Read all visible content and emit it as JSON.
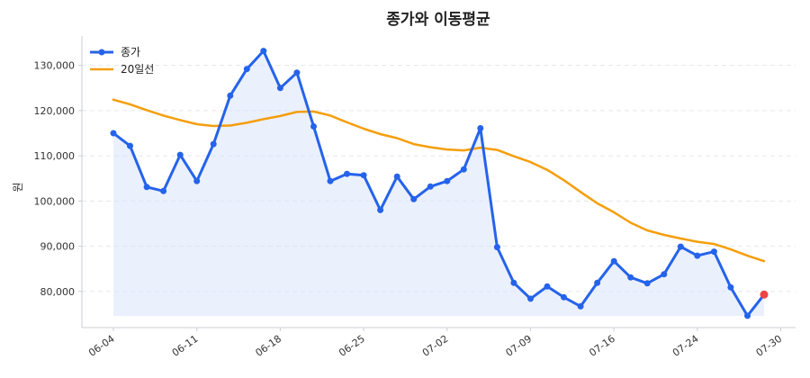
{
  "chart_data": {
    "type": "line",
    "title": "종가와 이동평균",
    "ylabel": "원",
    "xlabel": "",
    "ylim": [
      72000,
      136500
    ],
    "y_ticks": [
      80000,
      90000,
      100000,
      110000,
      120000,
      130000
    ],
    "y_tick_labels": [
      "80,000",
      "90,000",
      "100,000",
      "110,000",
      "120,000",
      "130,000"
    ],
    "x_ticks": [
      0,
      5,
      10,
      15,
      20,
      25,
      30,
      35,
      40
    ],
    "x_tick_labels": [
      "06-04",
      "06-11",
      "06-18",
      "06-25",
      "07-02",
      "07-09",
      "07-16",
      "07-24",
      "07-30"
    ],
    "grid": "horizontal dashed",
    "legend": "top-left",
    "colors": {
      "close": "#2563eb",
      "ma": "#f59e0b",
      "fill": "#dbe4fb",
      "last_point": "#ef4444"
    },
    "series": [
      {
        "name": "종가",
        "values": [
          115000,
          112200,
          103100,
          102200,
          110200,
          104400,
          112600,
          123300,
          129200,
          133200,
          125000,
          128400,
          116500,
          104400,
          106000,
          105700,
          98000,
          105400,
          100400,
          103200,
          104400,
          107000,
          116100,
          89800,
          81900,
          78400,
          81100,
          78700,
          76700,
          81900,
          86700,
          83100,
          81800,
          83800,
          89900,
          87900,
          88800,
          80900,
          74600,
          79300
        ]
      },
      {
        "name": "20일선",
        "values": [
          122400,
          121400,
          120100,
          118900,
          117900,
          117000,
          116600,
          116700,
          117300,
          118100,
          118800,
          119700,
          119800,
          118900,
          117400,
          116000,
          114800,
          113900,
          112600,
          111900,
          111400,
          111200,
          111800,
          111300,
          109900,
          108600,
          106900,
          104600,
          102000,
          99500,
          97500,
          95200,
          93500,
          92500,
          91700,
          91000,
          90500,
          89300,
          87900,
          86700
        ]
      }
    ]
  }
}
